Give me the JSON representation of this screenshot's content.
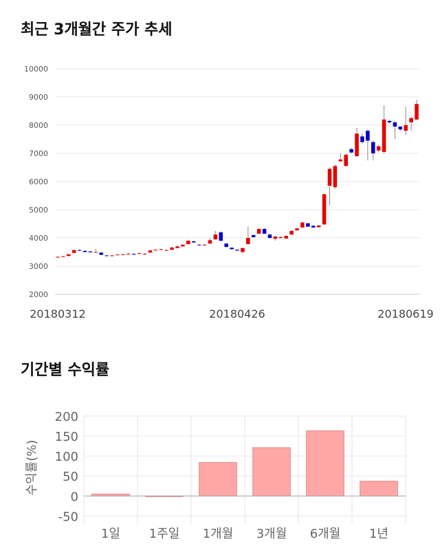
{
  "chart_data": [
    {
      "type": "candlestick",
      "title": "최근 3개월간 주가 추세",
      "categories": [
        "20180312",
        null,
        null,
        null,
        null,
        null,
        null,
        null,
        null,
        null,
        null,
        null,
        null,
        null,
        null,
        null,
        null,
        null,
        null,
        null,
        null,
        null,
        null,
        null,
        null,
        null,
        null,
        null,
        null,
        null,
        null,
        null,
        null,
        "20180426",
        null,
        null,
        null,
        null,
        null,
        null,
        null,
        null,
        null,
        null,
        null,
        null,
        null,
        null,
        null,
        null,
        null,
        null,
        null,
        null,
        null,
        null,
        null,
        null,
        null,
        null,
        null,
        null,
        null,
        null,
        null,
        null,
        "20180619"
      ],
      "open": [
        3320,
        3340,
        3360,
        3470,
        3570,
        3540,
        3520,
        3500,
        3480,
        3380,
        3370,
        3390,
        3400,
        3420,
        3430,
        3440,
        3420,
        3480,
        3560,
        3580,
        3560,
        3580,
        3640,
        3700,
        3780,
        3880,
        3760,
        3740,
        3800,
        3950,
        4200,
        3800,
        3650,
        3580,
        3500,
        3780,
        4100,
        4150,
        4320,
        4120,
        3970,
        4000,
        3980,
        4120,
        4270,
        4370,
        4520,
        4430,
        4380,
        4480,
        5850,
        5800,
        6720,
        6550,
        7150,
        6900,
        7600,
        7800,
        7400,
        7100,
        7050,
        8150,
        8100,
        7950,
        7800,
        8100,
        8200
      ],
      "high": [
        3340,
        3360,
        3430,
        3580,
        3600,
        3560,
        3540,
        3620,
        3490,
        3400,
        3400,
        3420,
        3440,
        3460,
        3460,
        3480,
        3460,
        3570,
        3600,
        3620,
        3590,
        3680,
        3720,
        3780,
        3920,
        3900,
        3780,
        3780,
        4000,
        4250,
        4230,
        3820,
        3680,
        3600,
        3660,
        4400,
        4120,
        4340,
        4340,
        4140,
        4070,
        4060,
        4090,
        4270,
        4360,
        4570,
        4540,
        4450,
        4460,
        5560,
        6500,
        6600,
        7000,
        7000,
        7200,
        7900,
        7700,
        7850,
        7450,
        7300,
        8700,
        8200,
        8150,
        7960,
        8650,
        8300,
        8900
      ],
      "low": [
        3300,
        3320,
        3350,
        3460,
        3540,
        3490,
        3480,
        3480,
        3390,
        3350,
        3350,
        3380,
        3390,
        3400,
        3400,
        3420,
        3400,
        3470,
        3540,
        3570,
        3540,
        3570,
        3630,
        3690,
        3770,
        3830,
        3730,
        3730,
        3790,
        3930,
        3890,
        3660,
        3590,
        3540,
        3450,
        3770,
        4010,
        4140,
        4140,
        3980,
        3900,
        3980,
        3960,
        4110,
        4260,
        4360,
        4390,
        4360,
        4370,
        4470,
        5150,
        5750,
        6700,
        6540,
        7000,
        6880,
        7350,
        6750,
        6750,
        7050,
        7000,
        8050,
        7500,
        7800,
        7650,
        7800,
        8180
      ],
      "close": [
        3330,
        3350,
        3420,
        3570,
        3560,
        3500,
        3490,
        3500,
        3400,
        3360,
        3380,
        3410,
        3420,
        3440,
        3420,
        3460,
        3440,
        3560,
        3580,
        3600,
        3570,
        3660,
        3700,
        3760,
        3900,
        3840,
        3740,
        3760,
        3920,
        4120,
        3900,
        3680,
        3600,
        3550,
        3640,
        4000,
        4030,
        4320,
        4150,
        4000,
        4050,
        4030,
        4070,
        4250,
        4340,
        4550,
        4400,
        4370,
        4440,
        5550,
        6450,
        6550,
        6780,
        6950,
        7030,
        7700,
        7400,
        7450,
        7000,
        7250,
        8200,
        8100,
        7950,
        7850,
        8000,
        8250,
        8750
      ],
      "up_color": "#e60000",
      "down_color": "#0000cc",
      "ylim": [
        2000,
        10000
      ],
      "yticks": [
        2000,
        3000,
        4000,
        5000,
        6000,
        7000,
        8000,
        9000,
        10000
      ],
      "grid": true
    },
    {
      "type": "bar",
      "title": "기간별 수익률",
      "ylabel": "수익률(%)",
      "categories": [
        "1일",
        "1주일",
        "1개월",
        "3개월",
        "6개월",
        "1년"
      ],
      "values": [
        5,
        0,
        84,
        121,
        163,
        37
      ],
      "color": "#ffa6a6",
      "ylim": [
        -70,
        200
      ],
      "yticks": [
        -50,
        0,
        50,
        100,
        150,
        200
      ],
      "grid": true
    }
  ]
}
